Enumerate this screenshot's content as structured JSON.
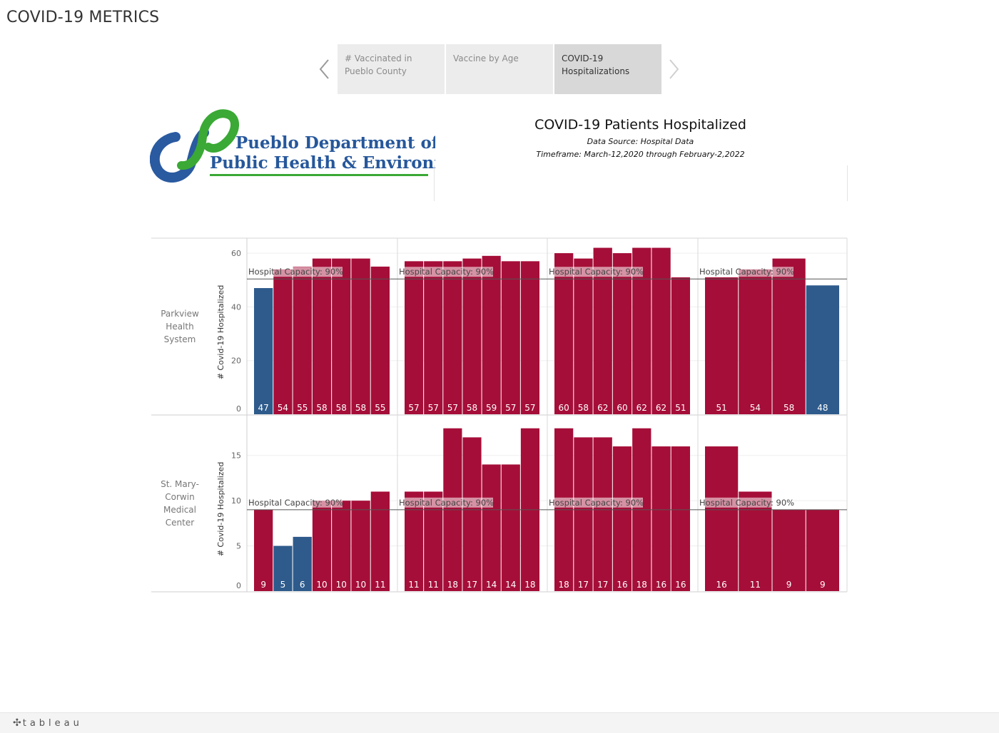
{
  "app": {
    "title": "COVID-19 METRICS"
  },
  "nav": {
    "tabs": [
      {
        "label": "# Vaccinated in Pueblo County",
        "active": false
      },
      {
        "label": "Vaccine by Age",
        "active": false
      },
      {
        "label": "COVID-19 Hospitalizations",
        "active": true
      }
    ],
    "prev_icon": "chevron-left-icon",
    "next_icon": "chevron-right-icon"
  },
  "logo": {
    "line1": "Pueblo Department of",
    "line2": "Public Health & Environment"
  },
  "header": {
    "title": "COVID-19 Patients Hospitalized",
    "source": "Data Source:  Hospital Data",
    "timeframe": "Timeframe: March-12,2020 through February-2,2022"
  },
  "chart_data": {
    "type": "bar",
    "ylabel": "# Covid-19 Hospitalized",
    "reference_label": "Hospital Capacity: 90%",
    "colors": {
      "above_capacity": "#a50e38",
      "below_capacity": "#2e5b8c"
    },
    "grid": true,
    "rows": [
      {
        "label": "Parkview Health System",
        "capacity": 50.4,
        "ylim": [
          0,
          64
        ],
        "yticks": [
          0,
          20,
          40,
          60
        ],
        "panes": [
          {
            "values": [
              47,
              54,
              55,
              58,
              58,
              58,
              55
            ]
          },
          {
            "values": [
              57,
              57,
              57,
              58,
              59,
              57,
              57
            ]
          },
          {
            "values": [
              60,
              58,
              62,
              60,
              62,
              62,
              51
            ]
          },
          {
            "values": [
              51,
              54,
              58,
              48
            ]
          }
        ]
      },
      {
        "label": "St. Mary-Corwin Medical Center",
        "capacity": 9,
        "ylim": [
          0,
          19
        ],
        "yticks": [
          0,
          5,
          10,
          15
        ],
        "panes": [
          {
            "values": [
              9,
              5,
              6,
              10,
              10,
              10,
              11
            ]
          },
          {
            "values": [
              11,
              11,
              18,
              17,
              14,
              14,
              18
            ]
          },
          {
            "values": [
              18,
              17,
              17,
              16,
              18,
              16,
              16
            ]
          },
          {
            "values": [
              16,
              11,
              9,
              9
            ]
          }
        ]
      }
    ]
  },
  "footer": {
    "brand": "tableau",
    "brand_icon": "tableau-plus-icon"
  }
}
